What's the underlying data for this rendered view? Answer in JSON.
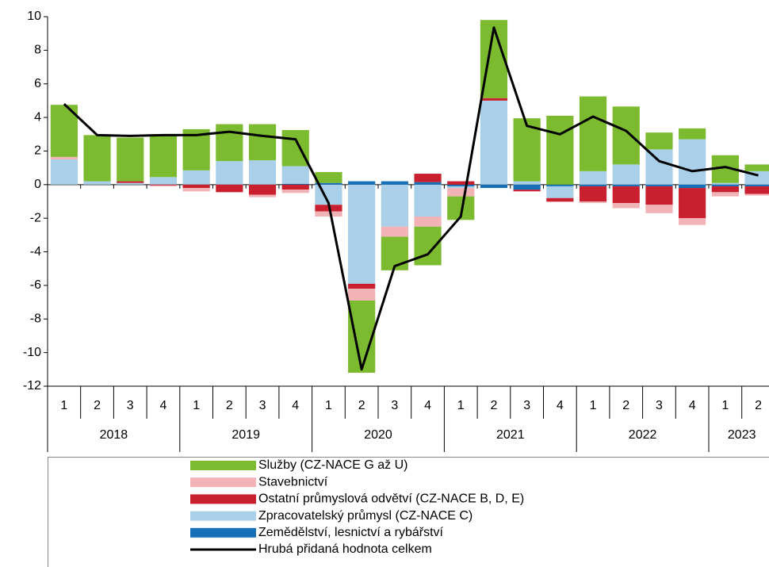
{
  "chart_data": {
    "type": "stacked-bar-line",
    "categories": [
      "1",
      "2",
      "3",
      "4",
      "1",
      "2",
      "3",
      "4",
      "1",
      "2",
      "3",
      "4",
      "1",
      "2",
      "3",
      "4",
      "1",
      "2",
      "3",
      "4",
      "1",
      "2"
    ],
    "year_groups": [
      "2018",
      "2019",
      "2020",
      "2021",
      "2022",
      "2023"
    ],
    "ylim": [
      -12,
      10
    ],
    "yticks": [
      -12,
      -10,
      -8,
      -6,
      -4,
      -2,
      0,
      2,
      4,
      6,
      8,
      10
    ],
    "series": [
      {
        "name": "Služby (CZ-NACE G až U)",
        "color": "#7cbb2f",
        "values": [
          3.1,
          2.75,
          2.6,
          2.55,
          2.45,
          2.2,
          2.15,
          2.15,
          0.65,
          -4.3,
          -2.0,
          -2.3,
          -1.4,
          4.65,
          3.75,
          4.1,
          4.45,
          3.45,
          1.0,
          0.65,
          1.65,
          0.4
        ]
      },
      {
        "name": "Stavebnictví",
        "color": "#f2b3b7",
        "values": [
          0.15,
          0,
          0,
          -0.05,
          -0.2,
          0,
          -0.15,
          -0.2,
          -0.3,
          -0.7,
          -0.6,
          -0.6,
          -0.5,
          0,
          0,
          -0.05,
          -0.1,
          -0.3,
          -0.5,
          -0.4,
          -0.25,
          -0.1
        ]
      },
      {
        "name": "Ostatní průmyslová odvětví (CZ-NACE B, D, E)",
        "color": "#c8202f",
        "values": [
          0,
          0,
          0.1,
          -0.05,
          -0.2,
          -0.45,
          -0.6,
          -0.3,
          -0.4,
          -0.3,
          0,
          0.5,
          0.2,
          0.15,
          -0.1,
          -0.2,
          -0.9,
          -1.0,
          -1.1,
          -1.8,
          -0.35,
          -0.45
        ]
      },
      {
        "name": "Zpracovatelský průmysl (CZ-NACE C)",
        "color": "#a9cfe9",
        "values": [
          1.5,
          0.2,
          0.1,
          0.45,
          0.85,
          1.4,
          1.45,
          1.05,
          -1.2,
          -5.9,
          -2.5,
          -1.9,
          -0.1,
          5.0,
          0.2,
          -0.7,
          0.8,
          1.2,
          2.1,
          2.7,
          0.1,
          0.8
        ]
      },
      {
        "name": "Zemědělství, lesnictví a rybářství",
        "color": "#1570b8",
        "values": [
          0,
          0,
          0,
          0,
          0,
          0,
          0,
          0.05,
          0.1,
          0.2,
          0.2,
          0.15,
          -0.1,
          -0.2,
          -0.3,
          -0.1,
          -0.1,
          -0.1,
          -0.1,
          -0.2,
          -0.1,
          -0.1
        ]
      }
    ],
    "line": {
      "name": "Hrubá přidaná hodnota celkem",
      "color": "#000000",
      "values": [
        4.8,
        2.95,
        2.9,
        2.95,
        2.95,
        3.15,
        2.9,
        2.7,
        -1.1,
        -11.0,
        -4.85,
        -4.15,
        -1.9,
        9.35,
        3.5,
        3.0,
        4.05,
        3.2,
        1.4,
        0.8,
        1.05,
        0.55
      ]
    }
  }
}
